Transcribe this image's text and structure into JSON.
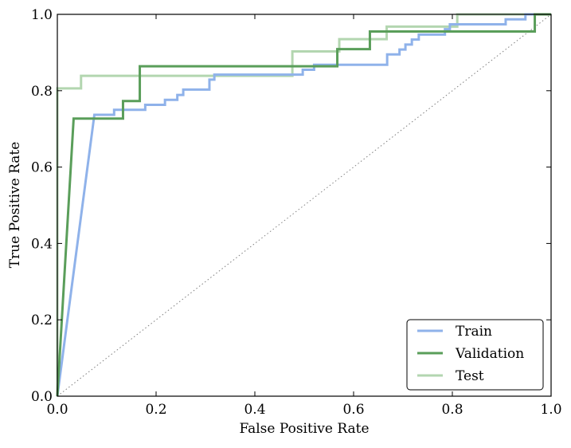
{
  "chart_data": {
    "type": "line",
    "title": "",
    "xlabel": "False Positive Rate",
    "ylabel": "True Positive Rate",
    "xlim": [
      0.0,
      1.0
    ],
    "ylim": [
      0.0,
      1.0
    ],
    "xticks": [
      0.0,
      0.2,
      0.4,
      0.6,
      0.8,
      1.0
    ],
    "yticks": [
      0.0,
      0.2,
      0.4,
      0.6,
      0.8,
      1.0
    ],
    "xtick_labels": [
      "0.0",
      "0.2",
      "0.4",
      "0.6",
      "0.8",
      "1.0"
    ],
    "ytick_labels": [
      "0.0",
      "0.2",
      "0.4",
      "0.6",
      "0.8",
      "1.0"
    ],
    "grid": false,
    "legend_position": "bottom-right",
    "diagonal_reference": {
      "x": [
        0.0,
        1.0
      ],
      "y": [
        0.0,
        1.0
      ],
      "color": "#808080",
      "style": "dotted"
    },
    "series": [
      {
        "name": "Train",
        "color": "#8fb2ea",
        "x": [
          0.0,
          0.075,
          0.115,
          0.115,
          0.178,
          0.178,
          0.218,
          0.218,
          0.243,
          0.243,
          0.255,
          0.255,
          0.308,
          0.308,
          0.318,
          0.318,
          0.497,
          0.497,
          0.52,
          0.52,
          0.668,
          0.668,
          0.693,
          0.693,
          0.705,
          0.705,
          0.718,
          0.718,
          0.732,
          0.732,
          0.785,
          0.785,
          0.795,
          0.795,
          0.908,
          0.908,
          0.948,
          0.948,
          0.972
        ],
        "y": [
          0.0,
          0.737,
          0.737,
          0.75,
          0.75,
          0.763,
          0.763,
          0.776,
          0.776,
          0.789,
          0.789,
          0.803,
          0.803,
          0.829,
          0.829,
          0.842,
          0.842,
          0.855,
          0.855,
          0.868,
          0.868,
          0.895,
          0.895,
          0.908,
          0.908,
          0.921,
          0.921,
          0.934,
          0.934,
          0.947,
          0.947,
          0.961,
          0.961,
          0.974,
          0.974,
          0.987,
          0.987,
          1.0,
          1.0
        ]
      },
      {
        "name": "Validation",
        "color": "#5a9e5a",
        "x": [
          0.0,
          0.033,
          0.133,
          0.133,
          0.167,
          0.167,
          0.567,
          0.567,
          0.633,
          0.633,
          0.967,
          0.967,
          1.0
        ],
        "y": [
          0.0,
          0.727,
          0.727,
          0.773,
          0.773,
          0.864,
          0.864,
          0.909,
          0.909,
          0.955,
          0.955,
          1.0,
          1.0
        ]
      },
      {
        "name": "Test",
        "color": "#b3d6b0",
        "x": [
          0.0,
          0.0,
          0.048,
          0.048,
          0.476,
          0.476,
          0.571,
          0.571,
          0.667,
          0.667,
          0.81,
          0.81,
          1.0
        ],
        "y": [
          0.0,
          0.806,
          0.806,
          0.839,
          0.839,
          0.903,
          0.903,
          0.935,
          0.935,
          0.968,
          0.968,
          1.0,
          1.0
        ]
      }
    ]
  }
}
